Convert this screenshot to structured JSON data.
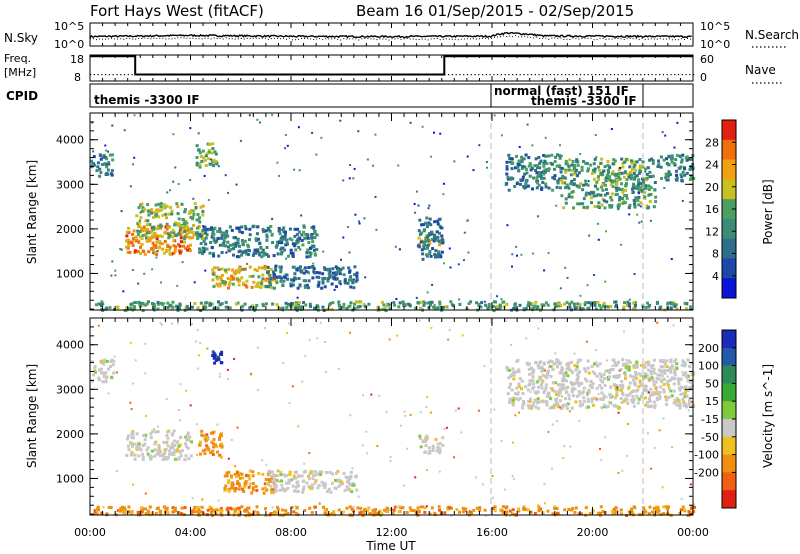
{
  "header": {
    "station": "Fort Hays West (fitACF)",
    "beam": "Beam 16",
    "date_range": "01/Sep/2015 - 02/Sep/2015"
  },
  "nsky": {
    "left_label": "N.Sky",
    "left_ticks": [
      "10^5",
      "10^0"
    ],
    "right_ticks": [
      "10^5",
      "10^0"
    ],
    "right_label": "N.Search"
  },
  "freq": {
    "left_label_1": "Freq.",
    "left_label_2": "[MHz]",
    "left_ticks": [
      "18",
      "8"
    ],
    "right_ticks": [
      "60",
      "0"
    ],
    "right_label": "Nave",
    "cpid_label": "CPID"
  },
  "cpid": {
    "segments": [
      "themis -3300 IF",
      "normal (fast) 151 IF",
      "themis -3300 IF"
    ]
  },
  "time_axis": {
    "label": "Time UT",
    "ticks": [
      "00:00",
      "04:00",
      "08:00",
      "12:00",
      "16:00",
      "20:00",
      "00:00"
    ]
  },
  "colors": {
    "power": [
      "#0a14d8",
      "#1e48a8",
      "#2e6e8c",
      "#3a8c74",
      "#4aa060",
      "#c8c020",
      "#f0a010",
      "#f07010",
      "#e02010"
    ],
    "velocity": [
      "#1a2cb8",
      "#2458a8",
      "#2e8a5a",
      "#3aaa34",
      "#7ecc3a",
      "#c8c8c8",
      "#f0c020",
      "#f09010",
      "#f06010",
      "#e02010"
    ]
  },
  "chart_data": [
    {
      "type": "line",
      "panel": "sky-noise",
      "ylabel": "N.Sky",
      "ylim": [
        1,
        100000
      ],
      "yscale": "log",
      "xlim_hours": [
        0,
        24
      ],
      "series": [
        {
          "x": [
            0,
            2,
            4,
            5,
            8,
            12,
            16,
            16.6,
            18,
            22,
            24
          ],
          "y": [
            100,
            130,
            180,
            160,
            110,
            100,
            120,
            600,
            140,
            110,
            100
          ]
        }
      ]
    },
    {
      "type": "line",
      "panel": "frequency",
      "ylabel": "Freq. [MHz]",
      "ylim": [
        8,
        18
      ],
      "xlim_hours": [
        0,
        24
      ],
      "series": [
        {
          "x": [
            0,
            1.8,
            1.8,
            14.1,
            14.1,
            24
          ],
          "y": [
            17.5,
            17.5,
            10.5,
            10.5,
            17.5,
            17.5
          ]
        }
      ]
    },
    {
      "type": "heatmap",
      "panel": "power",
      "xlabel": "",
      "ylabel": "Slant Range [km]",
      "xlim_hours": [
        0,
        24
      ],
      "ylim": [
        180,
        4600
      ],
      "yticks": [
        1000,
        2000,
        3000,
        4000
      ],
      "colorbar_label": "Power [dB]",
      "colorbar_range": [
        0,
        32
      ],
      "colorbar_ticks": [
        4,
        8,
        12,
        16,
        20,
        24,
        28
      ],
      "regions": [
        {
          "x": [
            0.0,
            0.9
          ],
          "y": [
            3200,
            3700
          ],
          "value": 10
        },
        {
          "x": [
            1.4,
            4.0
          ],
          "y": [
            1450,
            2100
          ],
          "value": 26
        },
        {
          "x": [
            1.8,
            4.5
          ],
          "y": [
            1800,
            2600
          ],
          "value": 18
        },
        {
          "x": [
            4.2,
            5.0
          ],
          "y": [
            3400,
            4000
          ],
          "value": 16
        },
        {
          "x": [
            4.8,
            7.4
          ],
          "y": [
            700,
            1200
          ],
          "value": 22
        },
        {
          "x": [
            7.0,
            10.6
          ],
          "y": [
            700,
            1200
          ],
          "value": 8
        },
        {
          "x": [
            4.3,
            9.0
          ],
          "y": [
            1400,
            2100
          ],
          "value": 10
        },
        {
          "x": [
            13.0,
            14.0
          ],
          "y": [
            1650,
            1900
          ],
          "value": 20
        },
        {
          "x": [
            13.0,
            14.0
          ],
          "y": [
            1350,
            2300
          ],
          "value": 8
        },
        {
          "x": [
            16.5,
            18.7
          ],
          "y": [
            2900,
            3700
          ],
          "value": 10
        },
        {
          "x": [
            18.7,
            22.5
          ],
          "y": [
            2500,
            3600
          ],
          "value": 14
        },
        {
          "x": [
            22.5,
            24.0
          ],
          "y": [
            3100,
            3700
          ],
          "value": 10
        },
        {
          "x": [
            0.0,
            24.0
          ],
          "y": [
            200,
            400
          ],
          "value": 14
        }
      ]
    },
    {
      "type": "heatmap",
      "panel": "velocity",
      "xlabel": "Time UT",
      "ylabel": "Slant Range [km]",
      "xlim_hours": [
        0,
        24
      ],
      "ylim": [
        180,
        4600
      ],
      "yticks": [
        1000,
        2000,
        3000,
        4000
      ],
      "colorbar_label": "Velocity [m s^-1]",
      "colorbar_ticks": [
        200,
        100,
        50,
        15,
        -15,
        -50,
        -100,
        -200
      ],
      "regions": [
        {
          "x": [
            0.0,
            0.9
          ],
          "y": [
            3200,
            3700
          ],
          "value": 0
        },
        {
          "x": [
            1.4,
            4.0
          ],
          "y": [
            1450,
            2100
          ],
          "value": 0
        },
        {
          "x": [
            4.3,
            5.2
          ],
          "y": [
            1500,
            2100
          ],
          "value": -60
        },
        {
          "x": [
            4.8,
            5.2
          ],
          "y": [
            3600,
            3900
          ],
          "value": 200
        },
        {
          "x": [
            5.3,
            7.4
          ],
          "y": [
            700,
            1200
          ],
          "value": -60
        },
        {
          "x": [
            7.0,
            10.6
          ],
          "y": [
            700,
            1200
          ],
          "value": 0
        },
        {
          "x": [
            13.0,
            14.0
          ],
          "y": [
            1600,
            2000
          ],
          "value": 0
        },
        {
          "x": [
            16.5,
            24.0
          ],
          "y": [
            2600,
            3700
          ],
          "value": 0
        },
        {
          "x": [
            0.0,
            24.0
          ],
          "y": [
            200,
            400
          ],
          "value": -60
        }
      ]
    }
  ]
}
